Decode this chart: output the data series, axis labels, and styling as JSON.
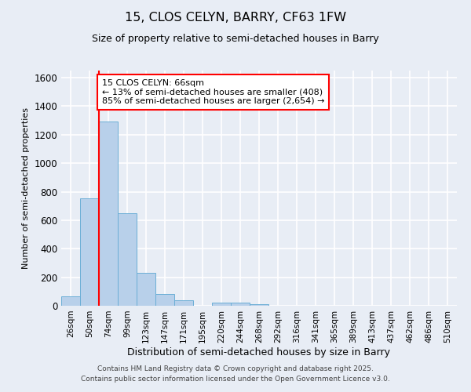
{
  "title": "15, CLOS CELYN, BARRY, CF63 1FW",
  "subtitle": "Size of property relative to semi-detached houses in Barry",
  "xlabel": "Distribution of semi-detached houses by size in Barry",
  "ylabel": "Number of semi-detached properties",
  "categories": [
    "26sqm",
    "50sqm",
    "74sqm",
    "99sqm",
    "123sqm",
    "147sqm",
    "171sqm",
    "195sqm",
    "220sqm",
    "244sqm",
    "268sqm",
    "292sqm",
    "316sqm",
    "341sqm",
    "365sqm",
    "389sqm",
    "413sqm",
    "437sqm",
    "462sqm",
    "486sqm",
    "510sqm"
  ],
  "values": [
    65,
    755,
    1290,
    650,
    230,
    80,
    40,
    0,
    20,
    20,
    10,
    0,
    0,
    0,
    0,
    0,
    0,
    0,
    0,
    0,
    0
  ],
  "bar_color": "#b8d0ea",
  "bar_edge_color": "#6baed6",
  "annotation_title": "15 CLOS CELYN: 66sqm",
  "annotation_line1": "← 13% of semi-detached houses are smaller (408)",
  "annotation_line2": "85% of semi-detached houses are larger (2,654) →",
  "redline_x": 1.5,
  "ylim_max": 1650,
  "yticks": [
    0,
    200,
    400,
    600,
    800,
    1000,
    1200,
    1400,
    1600
  ],
  "bg_color": "#e8edf5",
  "grid_color": "#ffffff",
  "footer_line1": "Contains HM Land Registry data © Crown copyright and database right 2025.",
  "footer_line2": "Contains public sector information licensed under the Open Government Licence v3.0."
}
